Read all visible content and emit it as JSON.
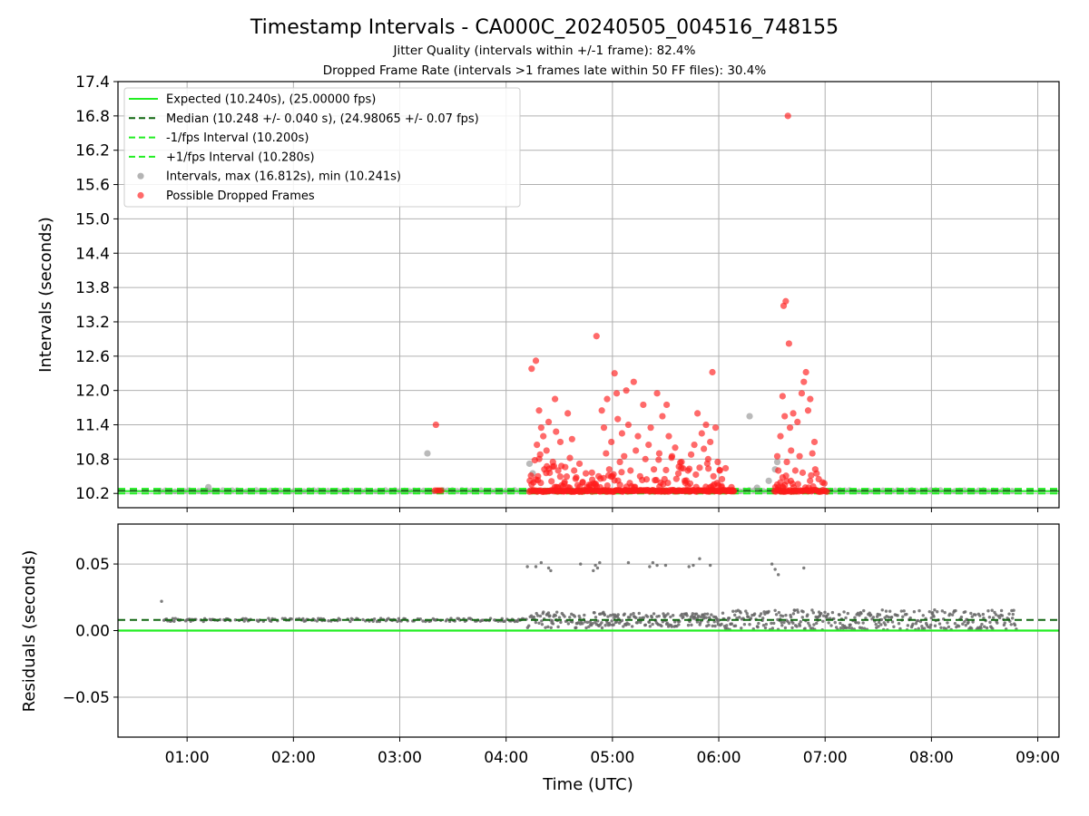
{
  "chart_data": [
    {
      "type": "scatter",
      "title": "Timestamp Intervals - CA000C_20240505_004516_748155",
      "subtitle_1": "Jitter Quality (intervals within +/-1 frame): 82.4%",
      "subtitle_2": "Dropped Frame Rate (intervals >1 frames late within 50 FF files): 30.4%",
      "ylabel": "Intervals (seconds)",
      "ylim": [
        9.95,
        17.4
      ],
      "yticks": [
        "10.2",
        "10.8",
        "11.4",
        "12.0",
        "12.6",
        "13.2",
        "13.8",
        "14.4",
        "15.0",
        "15.6",
        "16.2",
        "16.8",
        "17.4"
      ],
      "xlim_hours": [
        0.35,
        9.2
      ],
      "grid": true,
      "legend_position": "upper-left",
      "lines": {
        "expected": 10.24,
        "median": 10.248,
        "minus_one_fps": 10.2,
        "plus_one_fps": 10.28
      },
      "legend": [
        {
          "label": "Expected (10.240s), (25.00000 fps)",
          "style": "solid",
          "color": "#22ee22"
        },
        {
          "label": "Median (10.248 +/- 0.040 s), (24.98065 +/- 0.07 fps)",
          "style": "dashed",
          "color": "#116611"
        },
        {
          "label": "-1/fps Interval (10.200s)",
          "style": "dashed",
          "color": "#22ee22"
        },
        {
          "label": "+1/fps Interval (10.280s)",
          "style": "dashed",
          "color": "#22ee22"
        },
        {
          "label": "Intervals, max (16.812s), min (10.241s)",
          "style": "marker",
          "color": "#8c8c8c"
        },
        {
          "label": "Possible Dropped Frames",
          "style": "marker",
          "color": "#ff1a1a"
        }
      ],
      "baseline_intervals": {
        "x_start": 0.75,
        "x_end": 8.8,
        "y": 10.249
      },
      "gray_outliers": [
        {
          "x": 1.2,
          "y": 10.31
        },
        {
          "x": 3.26,
          "y": 10.9
        },
        {
          "x": 4.22,
          "y": 10.72
        },
        {
          "x": 4.25,
          "y": 10.55
        },
        {
          "x": 6.12,
          "y": 10.25
        },
        {
          "x": 6.29,
          "y": 11.55
        },
        {
          "x": 6.36,
          "y": 10.3
        },
        {
          "x": 6.47,
          "y": 10.42
        },
        {
          "x": 6.53,
          "y": 10.62
        },
        {
          "x": 6.55,
          "y": 10.75
        }
      ],
      "dropped_frames": [
        {
          "x": 3.34,
          "y": 11.4
        },
        {
          "x": 3.33,
          "y": 10.25
        },
        {
          "x": 3.35,
          "y": 10.25
        },
        {
          "x": 3.37,
          "y": 10.25
        },
        {
          "x": 3.39,
          "y": 10.25
        },
        {
          "x": 4.24,
          "y": 12.38
        },
        {
          "x": 4.28,
          "y": 12.52
        },
        {
          "x": 4.31,
          "y": 11.65
        },
        {
          "x": 4.33,
          "y": 11.35
        },
        {
          "x": 4.27,
          "y": 10.78
        },
        {
          "x": 4.29,
          "y": 11.05
        },
        {
          "x": 4.3,
          "y": 10.5
        },
        {
          "x": 4.32,
          "y": 10.88
        },
        {
          "x": 4.35,
          "y": 11.2
        },
        {
          "x": 4.36,
          "y": 10.62
        },
        {
          "x": 4.38,
          "y": 10.95
        },
        {
          "x": 4.4,
          "y": 11.45
        },
        {
          "x": 4.41,
          "y": 10.56
        },
        {
          "x": 4.44,
          "y": 10.75
        },
        {
          "x": 4.46,
          "y": 11.85
        },
        {
          "x": 4.47,
          "y": 11.28
        },
        {
          "x": 4.49,
          "y": 10.6
        },
        {
          "x": 4.51,
          "y": 11.1
        },
        {
          "x": 4.52,
          "y": 10.68
        },
        {
          "x": 4.55,
          "y": 10.4
        },
        {
          "x": 4.58,
          "y": 11.6
        },
        {
          "x": 4.6,
          "y": 10.82
        },
        {
          "x": 4.62,
          "y": 11.15
        },
        {
          "x": 4.64,
          "y": 10.6
        },
        {
          "x": 4.66,
          "y": 10.48
        },
        {
          "x": 4.69,
          "y": 10.72
        },
        {
          "x": 4.72,
          "y": 10.4
        },
        {
          "x": 4.75,
          "y": 10.55
        },
        {
          "x": 4.78,
          "y": 10.35
        },
        {
          "x": 4.81,
          "y": 10.44
        },
        {
          "x": 4.85,
          "y": 12.95
        },
        {
          "x": 4.87,
          "y": 10.5
        },
        {
          "x": 4.9,
          "y": 11.65
        },
        {
          "x": 4.92,
          "y": 11.35
        },
        {
          "x": 4.94,
          "y": 10.9
        },
        {
          "x": 4.95,
          "y": 11.85
        },
        {
          "x": 4.97,
          "y": 10.62
        },
        {
          "x": 4.99,
          "y": 11.1
        },
        {
          "x": 5.0,
          "y": 10.5
        },
        {
          "x": 5.02,
          "y": 12.3
        },
        {
          "x": 5.04,
          "y": 11.95
        },
        {
          "x": 5.05,
          "y": 11.5
        },
        {
          "x": 5.07,
          "y": 10.75
        },
        {
          "x": 5.09,
          "y": 11.25
        },
        {
          "x": 5.11,
          "y": 10.85
        },
        {
          "x": 5.13,
          "y": 12.0
        },
        {
          "x": 5.15,
          "y": 11.4
        },
        {
          "x": 5.17,
          "y": 10.6
        },
        {
          "x": 5.2,
          "y": 12.15
        },
        {
          "x": 5.22,
          "y": 10.95
        },
        {
          "x": 5.24,
          "y": 11.2
        },
        {
          "x": 5.26,
          "y": 10.5
        },
        {
          "x": 5.29,
          "y": 11.75
        },
        {
          "x": 5.31,
          "y": 10.8
        },
        {
          "x": 5.34,
          "y": 11.05
        },
        {
          "x": 5.36,
          "y": 11.35
        },
        {
          "x": 5.39,
          "y": 10.62
        },
        {
          "x": 5.42,
          "y": 11.95
        },
        {
          "x": 5.44,
          "y": 10.9
        },
        {
          "x": 5.47,
          "y": 11.55
        },
        {
          "x": 5.49,
          "y": 10.45
        },
        {
          "x": 5.51,
          "y": 11.75
        },
        {
          "x": 5.53,
          "y": 11.2
        },
        {
          "x": 5.56,
          "y": 10.85
        },
        {
          "x": 5.59,
          "y": 11.0
        },
        {
          "x": 5.62,
          "y": 10.55
        },
        {
          "x": 5.65,
          "y": 10.75
        },
        {
          "x": 5.68,
          "y": 10.42
        },
        {
          "x": 5.71,
          "y": 10.6
        },
        {
          "x": 5.74,
          "y": 10.88
        },
        {
          "x": 5.77,
          "y": 11.05
        },
        {
          "x": 5.8,
          "y": 11.6
        },
        {
          "x": 5.82,
          "y": 10.65
        },
        {
          "x": 5.84,
          "y": 11.25
        },
        {
          "x": 5.86,
          "y": 10.98
        },
        {
          "x": 5.88,
          "y": 11.4
        },
        {
          "x": 5.9,
          "y": 10.8
        },
        {
          "x": 5.92,
          "y": 11.1
        },
        {
          "x": 5.94,
          "y": 12.32
        },
        {
          "x": 5.95,
          "y": 10.5
        },
        {
          "x": 5.97,
          "y": 11.35
        },
        {
          "x": 5.99,
          "y": 10.75
        },
        {
          "x": 6.01,
          "y": 10.6
        },
        {
          "x": 6.03,
          "y": 10.45
        },
        {
          "x": 6.55,
          "y": 10.85
        },
        {
          "x": 6.56,
          "y": 10.6
        },
        {
          "x": 6.58,
          "y": 11.2
        },
        {
          "x": 6.6,
          "y": 10.48
        },
        {
          "x": 6.61,
          "y": 13.48
        },
        {
          "x": 6.63,
          "y": 13.56
        },
        {
          "x": 6.6,
          "y": 11.9
        },
        {
          "x": 6.62,
          "y": 11.55
        },
        {
          "x": 6.64,
          "y": 10.75
        },
        {
          "x": 6.65,
          "y": 16.8
        },
        {
          "x": 6.66,
          "y": 12.82
        },
        {
          "x": 6.67,
          "y": 11.35
        },
        {
          "x": 6.68,
          "y": 10.95
        },
        {
          "x": 6.7,
          "y": 11.6
        },
        {
          "x": 6.72,
          "y": 10.6
        },
        {
          "x": 6.74,
          "y": 11.45
        },
        {
          "x": 6.76,
          "y": 10.85
        },
        {
          "x": 6.78,
          "y": 11.95
        },
        {
          "x": 6.8,
          "y": 12.15
        },
        {
          "x": 6.82,
          "y": 12.32
        },
        {
          "x": 6.84,
          "y": 11.65
        },
        {
          "x": 6.86,
          "y": 11.85
        },
        {
          "x": 6.88,
          "y": 10.9
        },
        {
          "x": 6.9,
          "y": 11.1
        },
        {
          "x": 6.92,
          "y": 10.55
        },
        {
          "x": 6.94,
          "y": 10.45
        }
      ],
      "dropped_floor_band": {
        "x_start": 4.22,
        "x_end": 7.02,
        "y": 10.245,
        "gap": [
          6.15,
          6.52
        ]
      }
    },
    {
      "type": "scatter",
      "xlabel": "Time (UTC)",
      "ylabel": "Residuals (seconds)",
      "ylim": [
        -0.08,
        0.08
      ],
      "yticks": [
        "0.05",
        "0.00",
        "−0.05"
      ],
      "ytick_values": [
        0.05,
        0.0,
        -0.05
      ],
      "xlim_hours": [
        0.35,
        9.2
      ],
      "xticks": [
        "01:00",
        "02:00",
        "03:00",
        "04:00",
        "05:00",
        "06:00",
        "07:00",
        "08:00",
        "09:00"
      ],
      "xtick_hours": [
        1,
        2,
        3,
        4,
        5,
        6,
        7,
        8,
        9
      ],
      "grid": true,
      "zero_line": 0.0,
      "median_line": 0.008,
      "high_residuals": [
        {
          "x": 0.76,
          "y": 0.022
        },
        {
          "x": 4.2,
          "y": 0.048
        },
        {
          "x": 4.28,
          "y": 0.048
        },
        {
          "x": 4.33,
          "y": 0.051
        },
        {
          "x": 4.4,
          "y": 0.047
        },
        {
          "x": 4.42,
          "y": 0.045
        },
        {
          "x": 4.7,
          "y": 0.05
        },
        {
          "x": 4.82,
          "y": 0.045
        },
        {
          "x": 4.84,
          "y": 0.049
        },
        {
          "x": 4.86,
          "y": 0.047
        },
        {
          "x": 4.88,
          "y": 0.051
        },
        {
          "x": 5.15,
          "y": 0.051
        },
        {
          "x": 5.35,
          "y": 0.048
        },
        {
          "x": 5.38,
          "y": 0.051
        },
        {
          "x": 5.42,
          "y": 0.049
        },
        {
          "x": 5.5,
          "y": 0.049
        },
        {
          "x": 5.72,
          "y": 0.048
        },
        {
          "x": 5.76,
          "y": 0.049
        },
        {
          "x": 5.82,
          "y": 0.054
        },
        {
          "x": 5.92,
          "y": 0.049
        },
        {
          "x": 6.5,
          "y": 0.05
        },
        {
          "x": 6.53,
          "y": 0.046
        },
        {
          "x": 6.56,
          "y": 0.042
        },
        {
          "x": 6.8,
          "y": 0.047
        }
      ]
    }
  ]
}
